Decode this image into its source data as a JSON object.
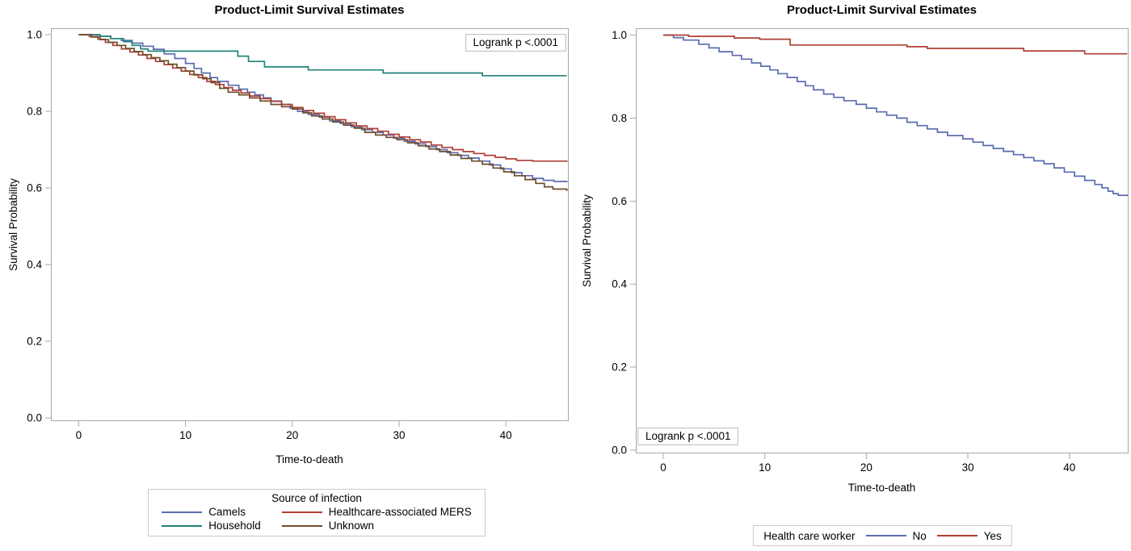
{
  "page_background": "#ffffff",
  "frame_color": "#a8a8a8",
  "chart_data": [
    {
      "type": "line",
      "step": true,
      "title": "Product-Limit Survival Estimates",
      "xlabel": "Time-to-death",
      "ylabel": "Survival Probability",
      "annotation": "Logrank p <.0001",
      "annotation_position": "top-right",
      "legend_title": "Source of infection",
      "legend_position": "bottom",
      "grid": false,
      "xlim": [
        -2.6,
        45.7
      ],
      "ylim": [
        0,
        1
      ],
      "x_ticks": [
        "0",
        "10",
        "20",
        "30",
        "40"
      ],
      "y_ticks": [
        "0.0",
        "0.2",
        "0.4",
        "0.6",
        "0.8",
        "1.0"
      ],
      "series": [
        {
          "name": "Camels",
          "color": "#5a6cb1",
          "points": [
            [
              0,
              1.0
            ],
            [
              2,
              0.996
            ],
            [
              3,
              0.99
            ],
            [
              4,
              0.985
            ],
            [
              5,
              0.978
            ],
            [
              6,
              0.97
            ],
            [
              7,
              0.962
            ],
            [
              8,
              0.95
            ],
            [
              9,
              0.938
            ],
            [
              10,
              0.925
            ],
            [
              10.8,
              0.912
            ],
            [
              11.5,
              0.9
            ],
            [
              12.3,
              0.888
            ],
            [
              13,
              0.878
            ],
            [
              14,
              0.868
            ],
            [
              15,
              0.858
            ],
            [
              15.8,
              0.85
            ],
            [
              16.5,
              0.843
            ],
            [
              17.3,
              0.835
            ],
            [
              18,
              0.827
            ],
            [
              19,
              0.818
            ],
            [
              19.8,
              0.808
            ],
            [
              20.5,
              0.8
            ],
            [
              21.5,
              0.792
            ],
            [
              22.5,
              0.785
            ],
            [
              23.5,
              0.775
            ],
            [
              24.5,
              0.768
            ],
            [
              25.5,
              0.76
            ],
            [
              26.5,
              0.752
            ],
            [
              27.5,
              0.745
            ],
            [
              28.5,
              0.738
            ],
            [
              29.5,
              0.73
            ],
            [
              30.5,
              0.722
            ],
            [
              31.5,
              0.715
            ],
            [
              32.5,
              0.708
            ],
            [
              33.5,
              0.7
            ],
            [
              34.5,
              0.692
            ],
            [
              35.5,
              0.685
            ],
            [
              36.5,
              0.678
            ],
            [
              37.5,
              0.67
            ],
            [
              38.5,
              0.66
            ],
            [
              39.5,
              0.65
            ],
            [
              40.5,
              0.64
            ],
            [
              41.5,
              0.632
            ],
            [
              42.5,
              0.625
            ],
            [
              43.5,
              0.62
            ],
            [
              44.5,
              0.617
            ],
            [
              45.7,
              0.615
            ]
          ]
        },
        {
          "name": "Healthcare-associated MERS",
          "color": "#b03e36",
          "points": [
            [
              0,
              1.0
            ],
            [
              1,
              0.995
            ],
            [
              1.8,
              0.988
            ],
            [
              2.5,
              0.98
            ],
            [
              3.2,
              0.972
            ],
            [
              4,
              0.963
            ],
            [
              4.8,
              0.955
            ],
            [
              5.6,
              0.947
            ],
            [
              6.4,
              0.938
            ],
            [
              7.2,
              0.93
            ],
            [
              8,
              0.922
            ],
            [
              8.8,
              0.913
            ],
            [
              9.6,
              0.905
            ],
            [
              10.4,
              0.896
            ],
            [
              11.2,
              0.888
            ],
            [
              12,
              0.878
            ],
            [
              12.8,
              0.87
            ],
            [
              13.6,
              0.862
            ],
            [
              14.4,
              0.855
            ],
            [
              15.2,
              0.848
            ],
            [
              16,
              0.84
            ],
            [
              17,
              0.833
            ],
            [
              18,
              0.826
            ],
            [
              19,
              0.818
            ],
            [
              20,
              0.81
            ],
            [
              21,
              0.802
            ],
            [
              22,
              0.795
            ],
            [
              23,
              0.786
            ],
            [
              24,
              0.778
            ],
            [
              25,
              0.77
            ],
            [
              26,
              0.762
            ],
            [
              27,
              0.755
            ],
            [
              28,
              0.748
            ],
            [
              29,
              0.74
            ],
            [
              30,
              0.733
            ],
            [
              31,
              0.726
            ],
            [
              32,
              0.72
            ],
            [
              33,
              0.712
            ],
            [
              34,
              0.706
            ],
            [
              35,
              0.7
            ],
            [
              36,
              0.695
            ],
            [
              37,
              0.69
            ],
            [
              38,
              0.685
            ],
            [
              39,
              0.68
            ],
            [
              40,
              0.676
            ],
            [
              41,
              0.672
            ],
            [
              42.5,
              0.67
            ],
            [
              45.7,
              0.668
            ]
          ]
        },
        {
          "name": "Household",
          "color": "#22837a",
          "points": [
            [
              0,
              1.0
            ],
            [
              2,
              0.996
            ],
            [
              3,
              0.99
            ],
            [
              4.2,
              0.982
            ],
            [
              5,
              0.972
            ],
            [
              5.8,
              0.963
            ],
            [
              6.5,
              0.957
            ],
            [
              14.9,
              0.944
            ],
            [
              15.9,
              0.93
            ],
            [
              17.4,
              0.916
            ],
            [
              21.5,
              0.908
            ],
            [
              28.5,
              0.9
            ],
            [
              37.8,
              0.893
            ],
            [
              45.7,
              0.893
            ]
          ]
        },
        {
          "name": "Unknown",
          "color": "#6e4e28",
          "points": [
            [
              0,
              1.0
            ],
            [
              1.2,
              0.994
            ],
            [
              2,
              0.987
            ],
            [
              2.8,
              0.98
            ],
            [
              3.6,
              0.972
            ],
            [
              4.4,
              0.964
            ],
            [
              5.2,
              0.956
            ],
            [
              6,
              0.948
            ],
            [
              6.8,
              0.94
            ],
            [
              7.6,
              0.932
            ],
            [
              8.4,
              0.923
            ],
            [
              9.2,
              0.914
            ],
            [
              10,
              0.905
            ],
            [
              10.8,
              0.895
            ],
            [
              11.6,
              0.885
            ],
            [
              12.4,
              0.875
            ],
            [
              13.2,
              0.86
            ],
            [
              14,
              0.85
            ],
            [
              15,
              0.843
            ],
            [
              16,
              0.835
            ],
            [
              17,
              0.827
            ],
            [
              18,
              0.818
            ],
            [
              19,
              0.812
            ],
            [
              20,
              0.806
            ],
            [
              21,
              0.796
            ],
            [
              21.8,
              0.788
            ],
            [
              22.8,
              0.78
            ],
            [
              23.8,
              0.772
            ],
            [
              24.8,
              0.764
            ],
            [
              25.8,
              0.756
            ],
            [
              26.8,
              0.745
            ],
            [
              27.8,
              0.738
            ],
            [
              28.8,
              0.732
            ],
            [
              29.8,
              0.726
            ],
            [
              30.8,
              0.718
            ],
            [
              31.8,
              0.71
            ],
            [
              32.8,
              0.702
            ],
            [
              33.8,
              0.695
            ],
            [
              34.8,
              0.686
            ],
            [
              35.8,
              0.677
            ],
            [
              36.8,
              0.67
            ],
            [
              37.8,
              0.662
            ],
            [
              38.8,
              0.652
            ],
            [
              39.8,
              0.642
            ],
            [
              40.8,
              0.632
            ],
            [
              41.8,
              0.622
            ],
            [
              42.8,
              0.612
            ],
            [
              43.6,
              0.603
            ],
            [
              44.4,
              0.597
            ],
            [
              45.7,
              0.592
            ]
          ]
        }
      ]
    },
    {
      "type": "line",
      "step": true,
      "title": "Product-Limit Survival Estimates",
      "xlabel": "Time-to-death",
      "ylabel": "Survival Probability",
      "annotation": "Logrank p <.0001",
      "annotation_position": "bottom-left",
      "legend_title": "Health care worker",
      "legend_position": "bottom",
      "grid": false,
      "xlim": [
        -2.7,
        45.7
      ],
      "ylim": [
        0,
        1
      ],
      "x_ticks": [
        "0",
        "10",
        "20",
        "30",
        "40"
      ],
      "y_ticks": [
        "0.0",
        "0.2",
        "0.4",
        "0.6",
        "0.8",
        "1.0"
      ],
      "series": [
        {
          "name": "No",
          "color": "#5a6cb1",
          "points": [
            [
              0,
              1.0
            ],
            [
              1,
              0.994
            ],
            [
              2,
              0.988
            ],
            [
              3.5,
              0.978
            ],
            [
              4.5,
              0.969
            ],
            [
              5.5,
              0.96
            ],
            [
              6.8,
              0.951
            ],
            [
              7.7,
              0.942
            ],
            [
              8.7,
              0.933
            ],
            [
              9.6,
              0.925
            ],
            [
              10.5,
              0.916
            ],
            [
              11.3,
              0.907
            ],
            [
              12.2,
              0.898
            ],
            [
              13.2,
              0.888
            ],
            [
              14,
              0.878
            ],
            [
              14.8,
              0.868
            ],
            [
              15.8,
              0.858
            ],
            [
              16.8,
              0.85
            ],
            [
              17.8,
              0.842
            ],
            [
              19,
              0.833
            ],
            [
              20,
              0.824
            ],
            [
              21,
              0.815
            ],
            [
              22,
              0.807
            ],
            [
              23,
              0.8
            ],
            [
              24,
              0.79
            ],
            [
              25,
              0.782
            ],
            [
              26,
              0.774
            ],
            [
              27,
              0.766
            ],
            [
              28,
              0.758
            ],
            [
              29.5,
              0.75
            ],
            [
              30.5,
              0.742
            ],
            [
              31.5,
              0.734
            ],
            [
              32.5,
              0.727
            ],
            [
              33.5,
              0.72
            ],
            [
              34.5,
              0.712
            ],
            [
              35.5,
              0.705
            ],
            [
              36.5,
              0.697
            ],
            [
              37.5,
              0.69
            ],
            [
              38.5,
              0.68
            ],
            [
              39.5,
              0.67
            ],
            [
              40.5,
              0.66
            ],
            [
              41.5,
              0.65
            ],
            [
              42.5,
              0.64
            ],
            [
              43.2,
              0.632
            ],
            [
              43.8,
              0.624
            ],
            [
              44.3,
              0.618
            ],
            [
              44.8,
              0.614
            ],
            [
              45.7,
              0.612
            ]
          ]
        },
        {
          "name": "Yes",
          "color": "#b03e36",
          "points": [
            [
              0,
              1.0
            ],
            [
              2.5,
              0.997
            ],
            [
              7,
              0.993
            ],
            [
              9.5,
              0.99
            ],
            [
              12.5,
              0.976
            ],
            [
              24,
              0.972
            ],
            [
              26,
              0.968
            ],
            [
              35.5,
              0.962
            ],
            [
              41.5,
              0.955
            ],
            [
              45.7,
              0.955
            ]
          ]
        }
      ]
    }
  ]
}
